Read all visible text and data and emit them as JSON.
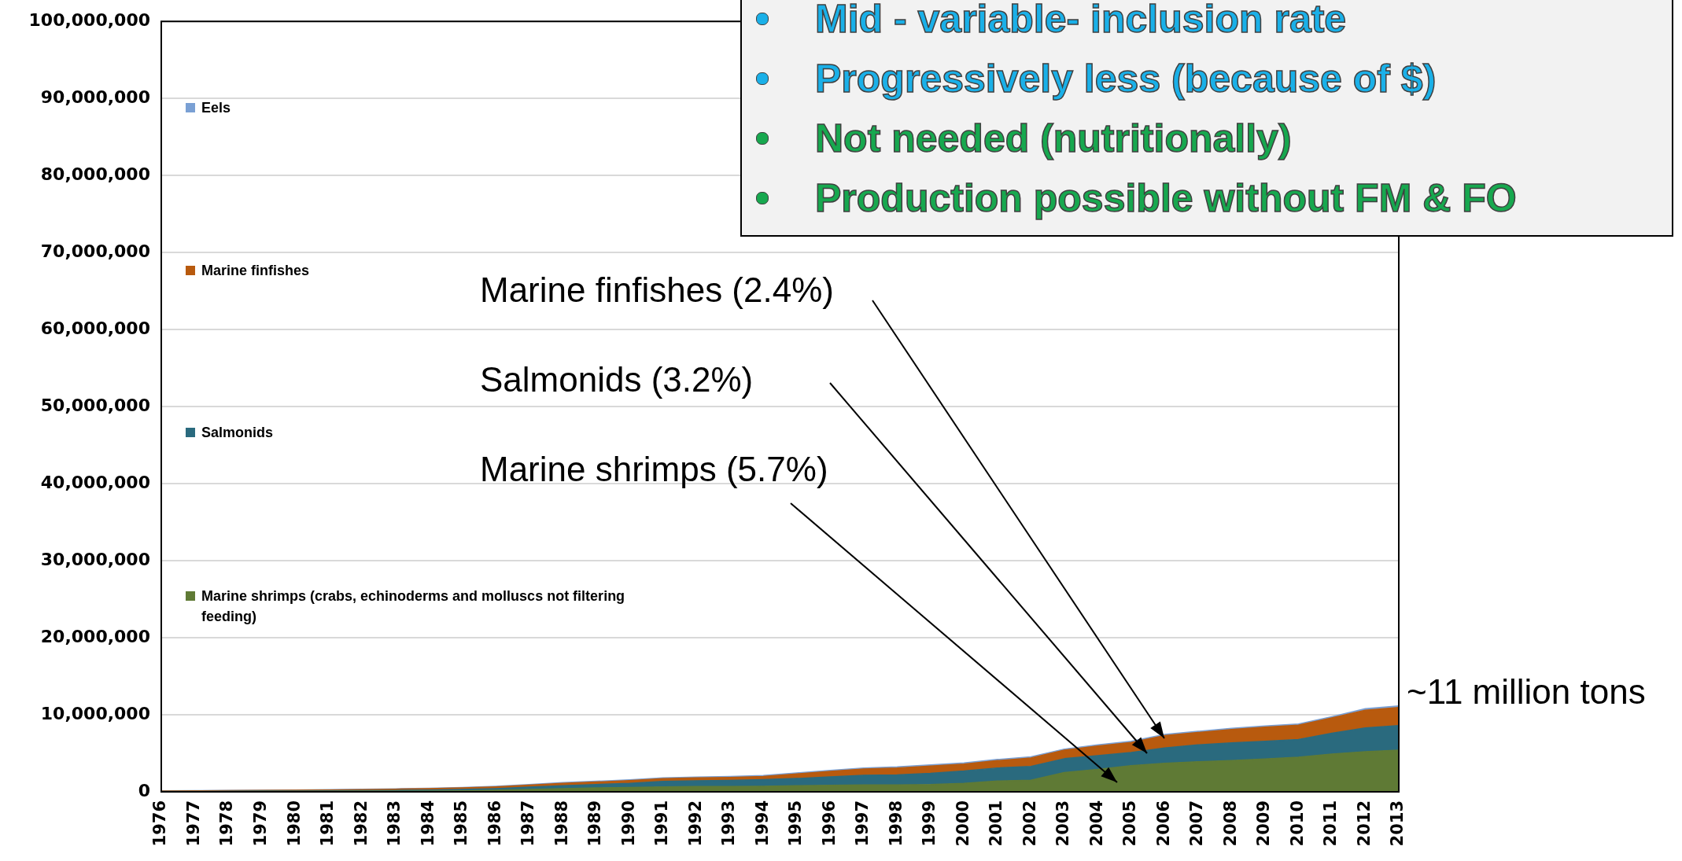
{
  "chart_data": {
    "type": "area",
    "stacked": true,
    "categories": [
      "1976",
      "1977",
      "1978",
      "1979",
      "1980",
      "1981",
      "1982",
      "1983",
      "1984",
      "1985",
      "1986",
      "1987",
      "1988",
      "1989",
      "1990",
      "1991",
      "1992",
      "1993",
      "1994",
      "1995",
      "1996",
      "1997",
      "1998",
      "1999",
      "2000",
      "2001",
      "2002",
      "2003",
      "2004",
      "2005",
      "2006",
      "2007",
      "2008",
      "2009",
      "2010",
      "2011",
      "2012",
      "2013"
    ],
    "series": [
      {
        "name": "Marine shrimps (crabs, echinoderms and molluscs not filtering feeding)",
        "color": "#5f7a35",
        "values": [
          20000,
          30000,
          30000,
          40000,
          50000,
          60000,
          70000,
          80000,
          100000,
          130000,
          200000,
          300000,
          400000,
          500000,
          550000,
          650000,
          680000,
          700000,
          720000,
          780000,
          850000,
          900000,
          900000,
          950000,
          1100000,
          1400000,
          1500000,
          2500000,
          2900000,
          3400000,
          3700000,
          3900000,
          4050000,
          4250000,
          4500000,
          4900000,
          5200000,
          5400000
        ]
      },
      {
        "name": "Salmonids",
        "color": "#2a6a7e",
        "values": [
          20000,
          30000,
          40000,
          50000,
          60000,
          70000,
          90000,
          110000,
          140000,
          170000,
          220000,
          300000,
          400000,
          450000,
          550000,
          700000,
          750000,
          780000,
          850000,
          950000,
          1100000,
          1250000,
          1300000,
          1450000,
          1600000,
          1700000,
          1800000,
          1800000,
          1800000,
          1700000,
          2000000,
          2200000,
          2300000,
          2300000,
          2300000,
          2700000,
          3100000,
          3200000
        ]
      },
      {
        "name": "Marine finfishes",
        "color": "#b85a0e",
        "values": [
          60000,
          70000,
          80000,
          90000,
          100000,
          110000,
          130000,
          150000,
          180000,
          200000,
          230000,
          270000,
          300000,
          320000,
          350000,
          350000,
          370000,
          380000,
          430000,
          600000,
          700000,
          800000,
          900000,
          950000,
          900000,
          950000,
          1100000,
          1100000,
          1250000,
          1300000,
          1600000,
          1600000,
          1750000,
          1850000,
          1850000,
          2000000,
          2300000,
          2350000
        ]
      },
      {
        "name": "Eels",
        "color": "#7aa0d4",
        "values": [
          20000,
          20000,
          30000,
          30000,
          30000,
          40000,
          40000,
          50000,
          50000,
          50000,
          60000,
          80000,
          100000,
          100000,
          100000,
          120000,
          120000,
          120000,
          130000,
          130000,
          140000,
          150000,
          150000,
          150000,
          150000,
          150000,
          150000,
          150000,
          150000,
          150000,
          150000,
          150000,
          150000,
          150000,
          150000,
          150000,
          200000,
          200000
        ]
      }
    ],
    "ylim": [
      0,
      100000000
    ],
    "yticks": [
      {
        "value": 0,
        "label": "0"
      },
      {
        "value": 10000000,
        "label": "10,000,000"
      },
      {
        "value": 20000000,
        "label": "20,000,000"
      },
      {
        "value": 30000000,
        "label": "30,000,000"
      },
      {
        "value": 40000000,
        "label": "40,000,000"
      },
      {
        "value": 50000000,
        "label": "50,000,000"
      },
      {
        "value": 60000000,
        "label": "60,000,000"
      },
      {
        "value": 70000000,
        "label": "70,000,000"
      },
      {
        "value": 80000000,
        "label": "80,000,000"
      },
      {
        "value": 90000000,
        "label": "90,000,000"
      },
      {
        "value": 100000000,
        "label": "100,000,000"
      }
    ],
    "grid": "y",
    "legend": "left",
    "annotations": [
      "Marine finfishes (2.4%)",
      "Salmonids (3.2%)",
      "Marine shrimps (5.7%)",
      "~11 million tons",
      "Mid - variable- inclusion rate",
      "Progressively less (because of $)",
      "Not needed (nutritionally)",
      "Production possible without FM & FO"
    ]
  }
}
